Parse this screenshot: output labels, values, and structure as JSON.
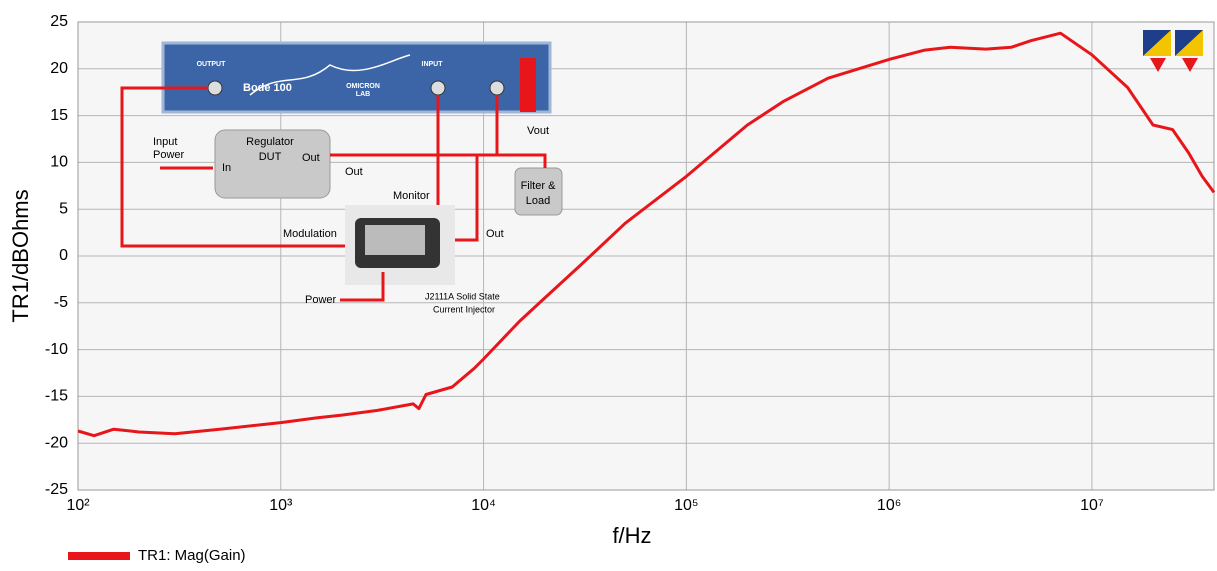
{
  "chart_data": {
    "type": "line",
    "x_label": "f/Hz",
    "y_label": "TR1/dBOhms",
    "xscale": "log",
    "xlim": [
      100,
      40000000
    ],
    "ylim": [
      -25,
      25
    ],
    "xticks": [
      {
        "value": 100,
        "label": "10²"
      },
      {
        "value": 1000,
        "label": "10³"
      },
      {
        "value": 10000,
        "label": "10⁴"
      },
      {
        "value": 100000,
        "label": "10⁵"
      },
      {
        "value": 1000000,
        "label": "10⁶"
      },
      {
        "value": 10000000,
        "label": "10⁷"
      }
    ],
    "yticks": [
      -25,
      -20,
      -15,
      -10,
      -5,
      0,
      5,
      10,
      15,
      20,
      25
    ],
    "grid": true,
    "legend": "bottom-left",
    "x": [
      100,
      120,
      150,
      200,
      300,
      500,
      1000,
      1500,
      2000,
      3000,
      4500,
      4800,
      5200,
      7000,
      9000,
      10000,
      15000,
      20000,
      30000,
      50000,
      100000,
      200000,
      300000,
      500000,
      1000000,
      1500000,
      2000000,
      3000000,
      4000000,
      5000000,
      7000000,
      10000000,
      15000000,
      20000000,
      25000000,
      30000000,
      35000000,
      40000000
    ],
    "series": [
      {
        "name": "TR1: Mag(Gain)",
        "color": "#e8161b",
        "values": [
          -18.7,
          -19.2,
          -18.5,
          -18.8,
          -19,
          -18.5,
          -17.8,
          -17.3,
          -17,
          -16.5,
          -15.8,
          -16.3,
          -14.8,
          -14,
          -12,
          -11,
          -7,
          -4.5,
          -1,
          3.5,
          8.5,
          14,
          16.5,
          19,
          21,
          22,
          22.3,
          22.1,
          22.3,
          23,
          23.8,
          21.5,
          18,
          14,
          13.5,
          11,
          8.5,
          6.8
        ]
      }
    ],
    "annotations": [
      "Input",
      "Power",
      "Regulator",
      "DUT",
      "In",
      "Out",
      "Out",
      "Monitor",
      "Modulation",
      "Out",
      "Vout",
      "Filter &",
      "Load",
      "Power",
      "J2111A Solid State",
      "Current Injector",
      "Bode 100",
      "OMICRON",
      "LAB",
      "OUTPUT",
      "INPUT"
    ]
  }
}
